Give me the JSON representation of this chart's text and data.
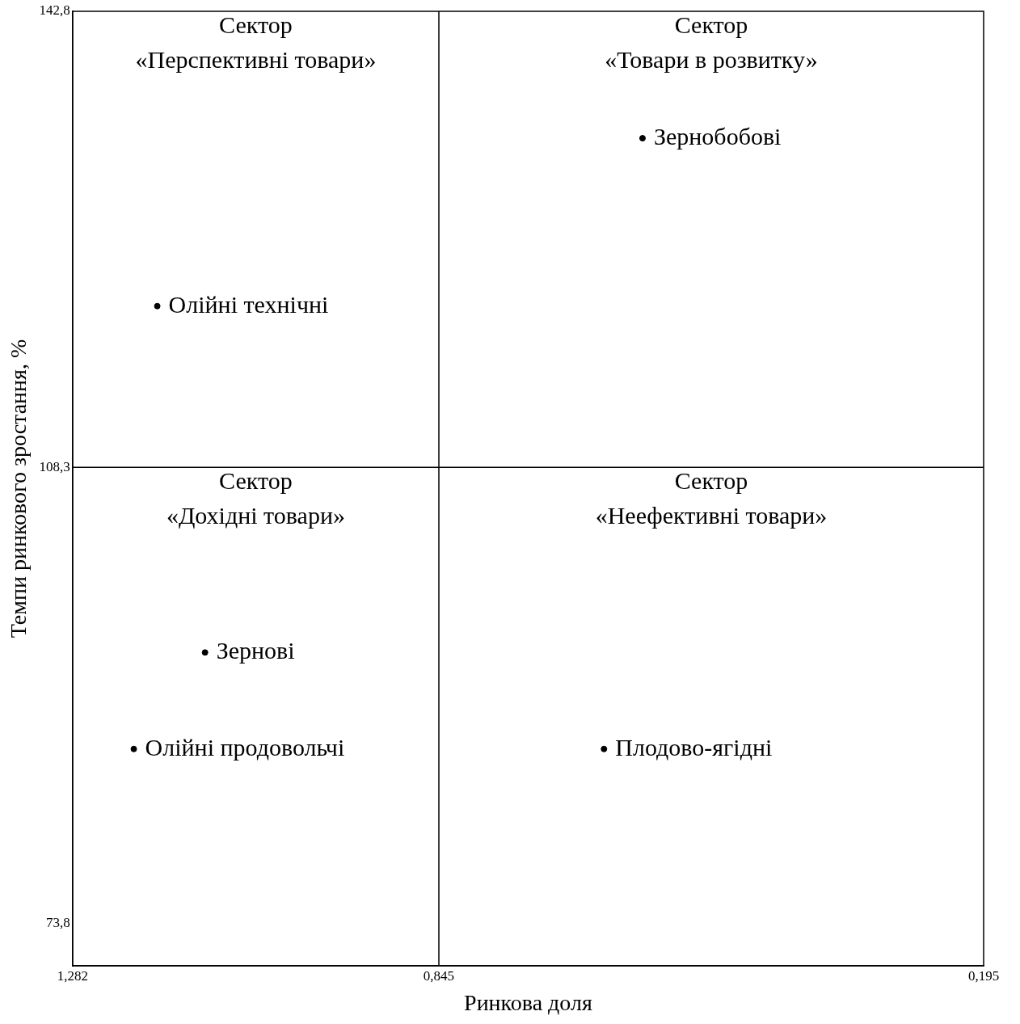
{
  "chart_data": {
    "type": "scatter",
    "xlabel": "Ринкова доля",
    "ylabel": "Темпи ринкового зростання, %",
    "x": [
      1.181,
      0.602,
      1.124,
      1.209,
      0.648
    ],
    "values": [
      120.5,
      133.2,
      94.3,
      87.0,
      87.0
    ],
    "color": "#000000",
    "marker": "circle",
    "grid": false,
    "xlim": [
      1.282,
      0.195
    ],
    "xticks": [
      {
        "value": 1.282,
        "label": "1,282"
      },
      {
        "value": 0.845,
        "label": "0,845"
      },
      {
        "value": 0.195,
        "label": "0,195"
      }
    ],
    "ylim": [
      70.6,
      142.8
    ],
    "yticks": [
      {
        "value": 142.8,
        "label": "142,8"
      },
      {
        "value": 108.3,
        "label": "108,3"
      },
      {
        "value": 73.8,
        "label": "73,8"
      }
    ],
    "ref_lines": [
      {
        "axis": "x",
        "value": 0.845,
        "color": "#000000"
      },
      {
        "axis": "y",
        "value": 108.3,
        "color": "#000000"
      }
    ],
    "annotations": [
      "Сектор\n«Перспективні товари»",
      "Сектор\n«Товари в розвитку»",
      "Сектор\n«Дохідні товари»",
      "Сектор\n«Неефективні товари»",
      {
        "text": "Олійні технічні",
        "x": 1.181,
        "y": 120.5
      },
      {
        "text": "Зернобобові",
        "x": 0.602,
        "y": 133.2
      },
      {
        "text": "Зернові",
        "x": 1.124,
        "y": 94.3
      },
      {
        "text": "Олійні продовольчі",
        "x": 1.209,
        "y": 87.0
      },
      {
        "text": "Плодово-ягідні",
        "x": 0.648,
        "y": 87.0
      }
    ]
  }
}
